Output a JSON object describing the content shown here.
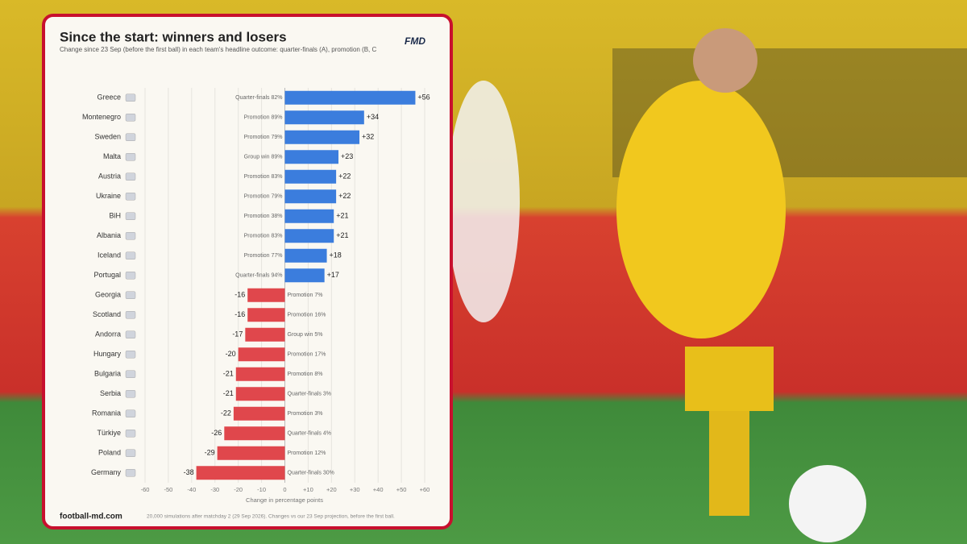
{
  "chart_data": {
    "type": "bar",
    "orientation": "horizontal",
    "title": "Since the start: winners and losers",
    "subtitle": "Change since 23 Sep (before the first ball) in each team's headline outcome: quarter-finals (A), promotion (B, C",
    "logo": "FMD",
    "categories": [
      "Greece",
      "Montenegro",
      "Sweden",
      "Malta",
      "Austria",
      "Ukraine",
      "BiH",
      "Albania",
      "Iceland",
      "Portugal",
      "Georgia",
      "Scotland",
      "Andorra",
      "Hungary",
      "Bulgaria",
      "Serbia",
      "Romania",
      "Türkiye",
      "Poland",
      "Germany"
    ],
    "values": [
      56,
      34,
      32,
      23,
      22,
      22,
      21,
      21,
      18,
      17,
      -16,
      -16,
      -17,
      -20,
      -21,
      -21,
      -22,
      -26,
      -29,
      -38
    ],
    "value_labels": [
      "+56",
      "+34",
      "+32",
      "+23",
      "+22",
      "+22",
      "+21",
      "+21",
      "+18",
      "+17",
      "-16",
      "-16",
      "-17",
      "-20",
      "-21",
      "-21",
      "-22",
      "-26",
      "-29",
      "-38"
    ],
    "outcomes": [
      "Quarter-finals 82%",
      "Promotion 89%",
      "Promotion 79%",
      "Group win 89%",
      "Promotion 83%",
      "Promotion 79%",
      "Promotion 38%",
      "Promotion 83%",
      "Promotion 77%",
      "Quarter-finals 94%",
      "Promotion 7%",
      "Promotion 16%",
      "Group win 5%",
      "Promotion 17%",
      "Promotion 8%",
      "Quarter-finals 3%",
      "Promotion 3%",
      "Quarter-finals 4%",
      "Promotion 12%",
      "Quarter-finals 30%"
    ],
    "color": "#3b7ddd",
    "negative_color": "#e0474c",
    "xlim": [
      -60,
      60
    ],
    "xticks": [
      -60,
      -50,
      -40,
      -30,
      -20,
      -10,
      0,
      {
        "value": 10,
        "label": "+10"
      },
      {
        "value": 20,
        "label": "+20"
      },
      {
        "value": 30,
        "label": "+30"
      },
      {
        "value": 40,
        "label": "+40"
      },
      {
        "value": 50,
        "label": "+50"
      },
      {
        "value": 60,
        "label": "+60"
      }
    ],
    "xlabel": "Change in percentage points",
    "grid": true,
    "source": "football-md.com",
    "note": "20,000 simulations after matchday 2 (29 Sep 2026). Changes vs our 23 Sep projection, before the first ball."
  }
}
